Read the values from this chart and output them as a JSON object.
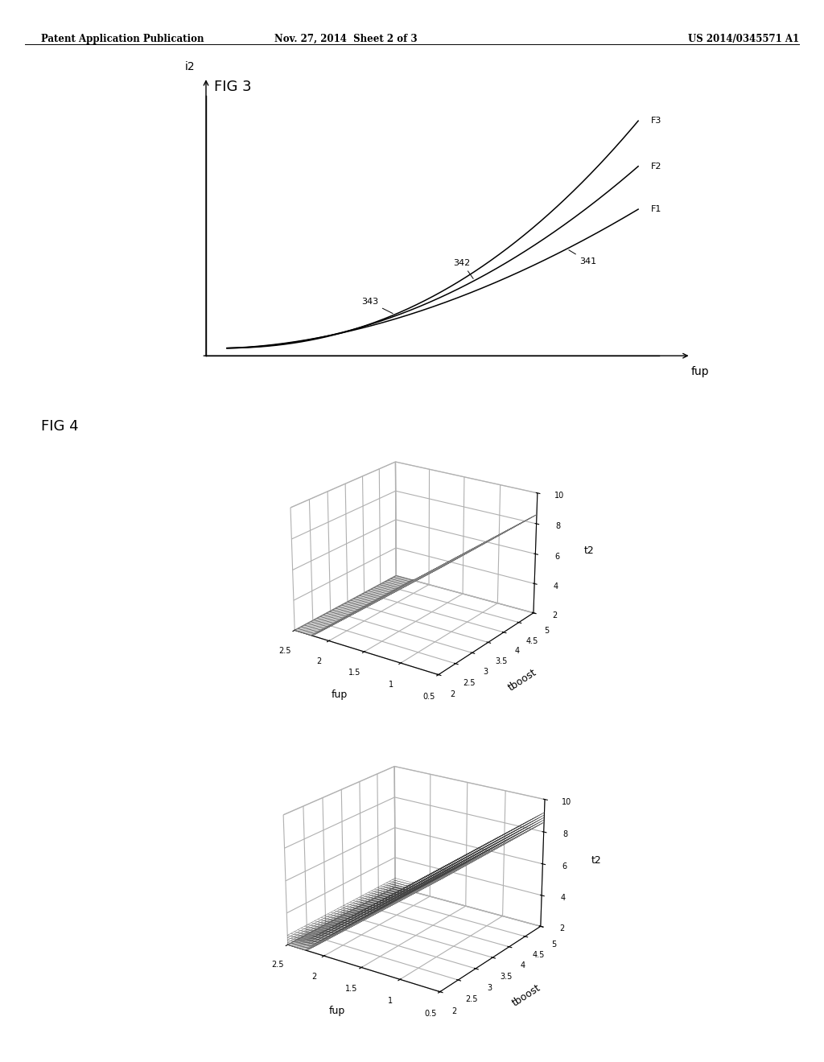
{
  "header_left": "Patent Application Publication",
  "header_mid": "Nov. 27, 2014  Sheet 2 of 3",
  "header_right": "US 2014/0345571 A1",
  "fig3_title": "FIG 3",
  "fig4_title": "FIG 4",
  "fig3_xlabel": "fup",
  "fig3_ylabel": "i2",
  "fig4_xlabel": "fup",
  "fig4_ylabel": "t2",
  "fig4_zlabel": "tboost",
  "curves": [
    {
      "label": "F1",
      "ref": "341",
      "exp": 1.8,
      "scale": 0.55
    },
    {
      "label": "F2",
      "ref": "342",
      "exp": 2.0,
      "scale": 0.72
    },
    {
      "label": "F3",
      "ref": "343",
      "exp": 2.2,
      "scale": 0.9
    }
  ],
  "surf_fup_min": 0.5,
  "surf_fup_max": 2.5,
  "surf_tboost_min": 2.0,
  "surf_tboost_max": 5.0,
  "surf_t2_min": 2,
  "surf_t2_max": 10,
  "background_color": "#ffffff",
  "elev": 22,
  "azim": -55
}
